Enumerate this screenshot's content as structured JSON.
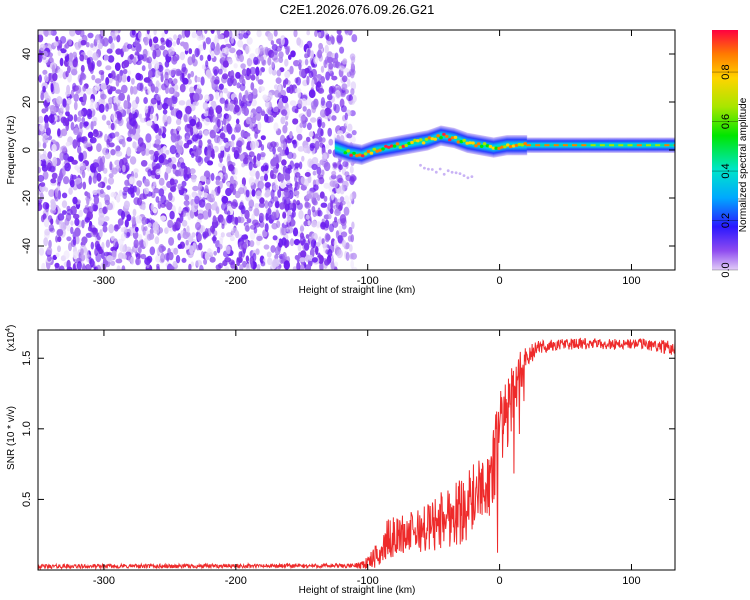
{
  "title": "C2E1.2026.076.09.26.G21",
  "colors": {
    "noise": "#6a1cf0",
    "snr_line": "#ee2a2a",
    "frame": "#000000"
  },
  "chart_data": [
    {
      "type": "heatmap",
      "name": "spectrogram",
      "xlabel": "Height of straight line (km)",
      "ylabel": "Frequency (Hz)",
      "xlim": [
        -350,
        133
      ],
      "ylim": [
        -50,
        50
      ],
      "xticks": [
        -300,
        -200,
        -100,
        0,
        100
      ],
      "yticks": [
        -40,
        -20,
        0,
        20,
        40
      ],
      "noise_region_x": [
        -350,
        -110
      ],
      "signal_track": {
        "x": [
          -125,
          -115,
          -105,
          -95,
          -85,
          -75,
          -65,
          -55,
          -45,
          -35,
          -25,
          -15,
          -5,
          5,
          15,
          40,
          80,
          133
        ],
        "freq": [
          1,
          -1,
          -2,
          0,
          1,
          2,
          3,
          4,
          6,
          5,
          3,
          2,
          1,
          2,
          2,
          2,
          2,
          2
        ]
      },
      "colorbar": {
        "label": "Normalized spectral amplitude",
        "min": 0.0,
        "max": 0.97,
        "ticks": [
          "0.0",
          "0.2",
          "0.4",
          "0.6",
          "0.8"
        ],
        "tick_values": [
          0.0,
          0.2,
          0.4,
          0.6,
          0.8
        ]
      }
    },
    {
      "type": "line",
      "name": "snr",
      "xlabel": "Height of straight line (km)",
      "ylabel": "SNR (10 * v/v)",
      "y_multiplier": "(x10",
      "y_multiplier_exp": "4",
      "y_multiplier_close": ")",
      "xlim": [
        -350,
        133
      ],
      "ylim": [
        0,
        1.7
      ],
      "xticks": [
        -300,
        -200,
        -100,
        0,
        100
      ],
      "yticks": [
        "0.5",
        "1.0",
        "1.5"
      ],
      "ytick_values": [
        0.5,
        1.0,
        1.5
      ],
      "envelope": {
        "x": [
          -350,
          -110,
          -100,
          -90,
          -85,
          -75,
          -60,
          -50,
          -40,
          -30,
          -20,
          -12,
          -5,
          0,
          10,
          20,
          30,
          50,
          80,
          110,
          133
        ],
        "mean": [
          0.025,
          0.03,
          0.05,
          0.12,
          0.22,
          0.25,
          0.28,
          0.32,
          0.38,
          0.42,
          0.5,
          0.58,
          0.7,
          0.95,
          1.25,
          1.5,
          1.58,
          1.6,
          1.6,
          1.6,
          1.57
        ],
        "amp": [
          0.015,
          0.015,
          0.05,
          0.1,
          0.14,
          0.14,
          0.16,
          0.2,
          0.22,
          0.25,
          0.25,
          0.24,
          0.3,
          0.3,
          0.25,
          0.08,
          0.05,
          0.04,
          0.04,
          0.04,
          0.05
        ]
      }
    }
  ]
}
